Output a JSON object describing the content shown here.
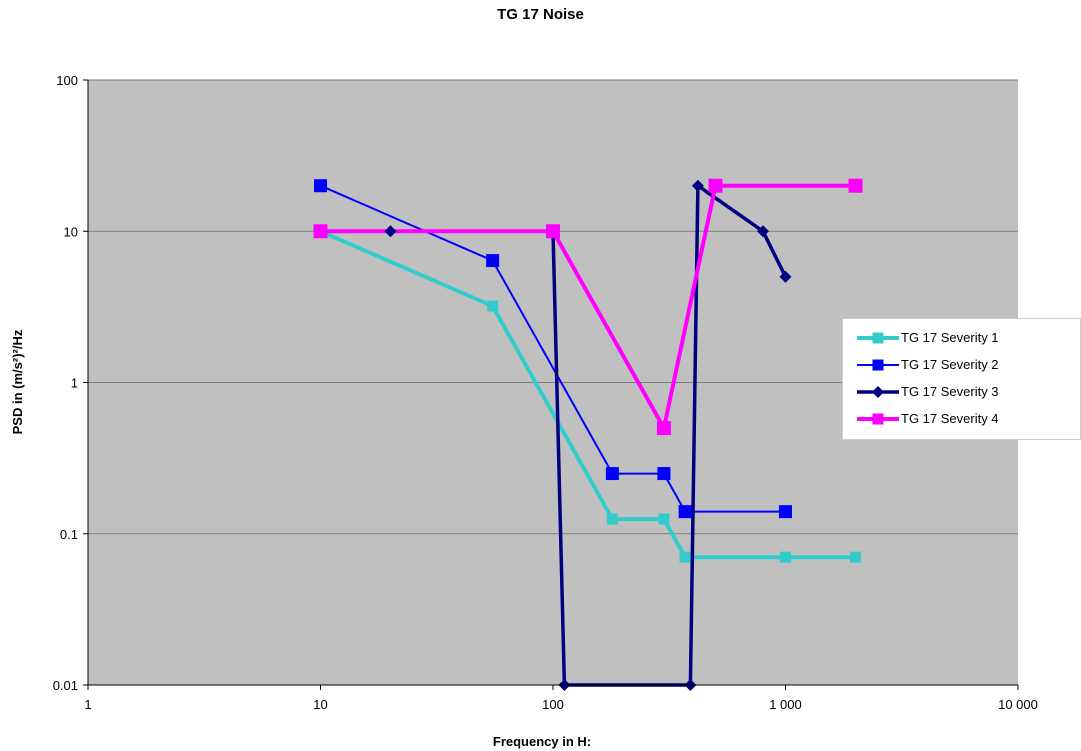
{
  "chart_data": {
    "type": "line",
    "title": "TG 17 Noise",
    "xlabel": "Frequency in H:",
    "ylabel": "PSD in (m/s²)²/Hz",
    "x_scale": "log",
    "y_scale": "log",
    "xlim": [
      1,
      10000
    ],
    "ylim": [
      0.01,
      100
    ],
    "x_ticks": [
      1,
      10,
      100,
      1000,
      10000
    ],
    "x_tick_labels": [
      "1",
      "10",
      "100",
      "1 000",
      "10 000"
    ],
    "y_ticks": [
      0.01,
      0.1,
      1,
      10,
      100
    ],
    "y_tick_labels": [
      "0.01",
      "0.1",
      "1",
      "10",
      "100"
    ],
    "grid": "horizontal",
    "plot_background": "#c0c0c0",
    "legend_position": "right",
    "series": [
      {
        "name": "TG 17 Severity 1",
        "color": "#33cccc",
        "marker": "square",
        "points": [
          [
            10,
            10
          ],
          [
            55,
            3.2
          ],
          [
            180,
            0.125
          ],
          [
            300,
            0.125
          ],
          [
            370,
            0.07
          ],
          [
            1000,
            0.07
          ],
          [
            2000,
            0.07
          ]
        ]
      },
      {
        "name": "TG 17 Severity 2",
        "color": "#0000ff",
        "marker": "square",
        "points": [
          [
            10,
            20
          ],
          [
            55,
            6.4
          ],
          [
            180,
            0.25
          ],
          [
            300,
            0.25
          ],
          [
            370,
            0.14
          ],
          [
            1000,
            0.14
          ]
        ]
      },
      {
        "name": "TG 17 Severity 3",
        "color": "#000080",
        "marker": "diamond",
        "points": [
          [
            20,
            10
          ],
          [
            100,
            10
          ],
          [
            112,
            0.01
          ],
          [
            390,
            0.01
          ],
          [
            420,
            20
          ],
          [
            800,
            10
          ],
          [
            1000,
            5
          ]
        ]
      },
      {
        "name": "TG 17 Severity 4",
        "color": "#ff00ff",
        "marker": "square",
        "points": [
          [
            10,
            10
          ],
          [
            100,
            10
          ],
          [
            300,
            0.5
          ],
          [
            500,
            20
          ],
          [
            2000,
            20
          ]
        ]
      }
    ]
  }
}
